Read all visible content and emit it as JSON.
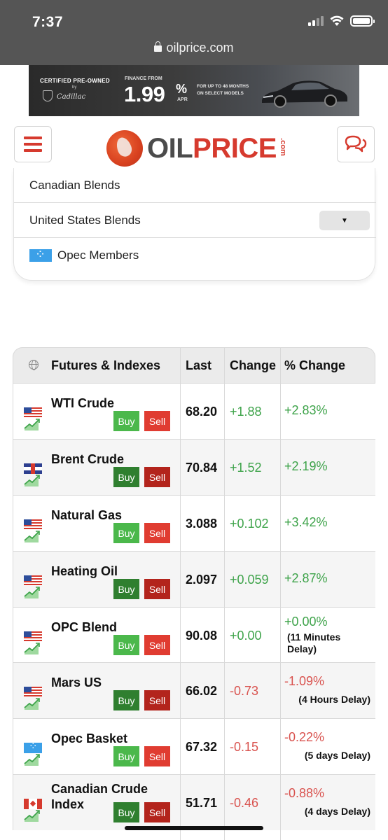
{
  "status_bar": {
    "time": "7:37"
  },
  "browser": {
    "url": "oilprice.com"
  },
  "ad": {
    "certified": "CERTIFIED PRE-OWNED",
    "by": "by",
    "brand": "Cadillac",
    "finance_from": "FINANCE FROM",
    "rate": "1.99",
    "percent": "%",
    "apr": "APR",
    "terms": "FOR UP TO 48 MONTHS ON SELECT MODELS"
  },
  "header": {
    "logo_oil": "OIL",
    "logo_price": "PRICE",
    "logo_com": ".com"
  },
  "blends": {
    "items": [
      {
        "label": "Canadian Blends"
      },
      {
        "label": "United States Blends",
        "dropdown": "▼"
      },
      {
        "label": "Opec Members"
      }
    ]
  },
  "futures_table": {
    "headers": [
      "Futures & Indexes",
      "Last",
      "Change",
      "% Change"
    ],
    "rows": [
      {
        "name": "WTI Crude",
        "flag": "us-flag",
        "buy": "Buy",
        "sell": "Sell",
        "last": "68.20",
        "change": "+1.88",
        "pct_change": "+2.83%",
        "note": ""
      },
      {
        "name": "Brent Crude",
        "flag": "uk-flag",
        "buy": "Buy",
        "sell": "Sell",
        "last": "70.84",
        "change": "+1.52",
        "pct_change": "+2.19%",
        "note": ""
      },
      {
        "name": "Natural Gas",
        "flag": "us-flag",
        "buy": "Buy",
        "sell": "Sell",
        "last": "3.088",
        "change": "+0.102",
        "pct_change": "+3.42%",
        "note": ""
      },
      {
        "name": "Heating Oil",
        "flag": "us-flag",
        "buy": "Buy",
        "sell": "Sell",
        "last": "2.097",
        "change": "+0.059",
        "pct_change": "+2.87%",
        "note": ""
      },
      {
        "name": "OPC Blend",
        "flag": "us-flag",
        "buy": "Buy",
        "sell": "Sell",
        "last": "90.08",
        "change": "+0.00",
        "pct_change": "+0.00%",
        "note": "(11 Minutes Delay)"
      },
      {
        "name": "Mars US",
        "flag": "us-flag",
        "buy": "Buy",
        "sell": "Sell",
        "last": "66.02",
        "change": "-0.73",
        "pct_change": "-1.09%",
        "note": "(4 Hours Delay)"
      },
      {
        "name": "Opec Basket",
        "flag": "opec-flag",
        "buy": "Buy",
        "sell": "Sell",
        "last": "67.32",
        "change": "-0.15",
        "pct_change": "-0.22%",
        "note": "(5 days Delay)"
      },
      {
        "name": "Canadian Crude Index",
        "flag": "canada-flag",
        "buy": "Buy",
        "sell": "Sell",
        "last": "51.71",
        "change": "-0.46",
        "pct_change": "-0.88%",
        "note": "(4 days Delay)"
      }
    ]
  },
  "colors": {
    "status_bar_bg": "#555555",
    "brand_red": "#d63a2e",
    "positive": "#3ea34a",
    "negative": "#d9534f",
    "buy_green": "#4bb84b",
    "sell_red": "#e03c31"
  }
}
